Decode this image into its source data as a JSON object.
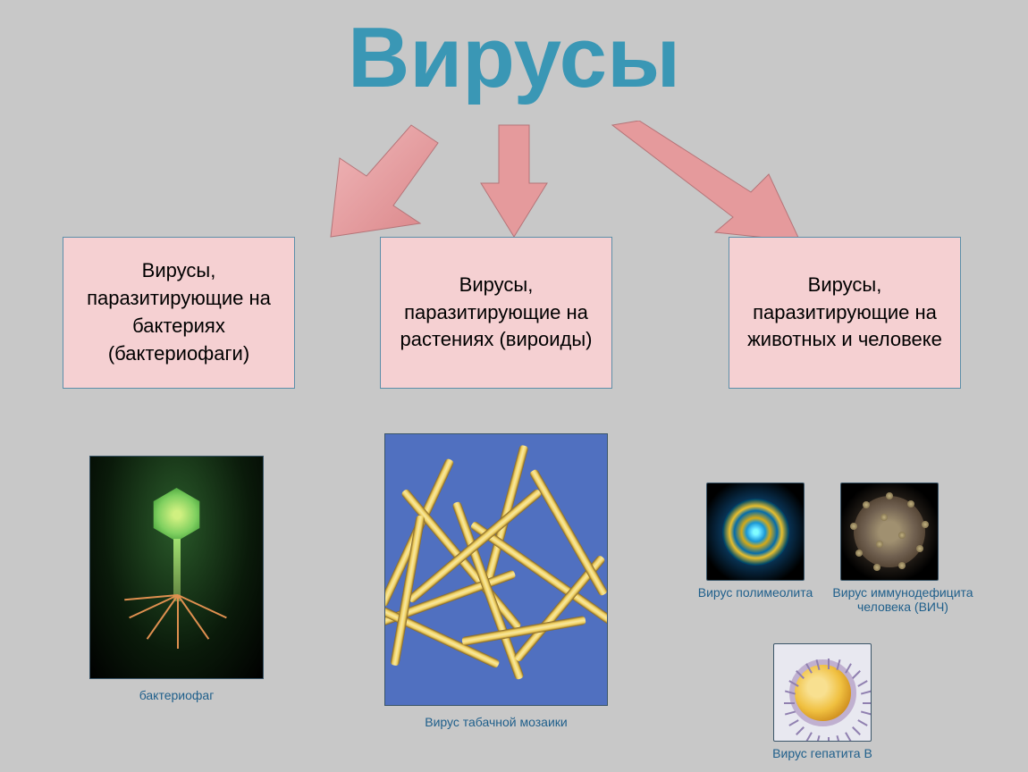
{
  "title": "Вирусы",
  "title_color": "#3a97b5",
  "title_fontsize": 96,
  "background_color": "#c8c8c8",
  "categories": [
    {
      "text": "Вирусы, паразитирующие на бактериях (бактериофаги)",
      "box_color": "#f5d0d2",
      "border_color": "#5c8fa9"
    },
    {
      "text": "Вирусы, паразитирующие на  растениях (вироиды)",
      "box_color": "#f5d0d2",
      "border_color": "#5c8fa9"
    },
    {
      "text": "Вирусы, паразитирующие на животных и человеке",
      "box_color": "#f5d0d2",
      "border_color": "#5c8fa9"
    }
  ],
  "arrows": {
    "fill_color": "#e59a9c",
    "stroke_color": "#b57478"
  },
  "images": {
    "bacteriophage": {
      "caption": "бактериофаг",
      "colors": {
        "head": "#80d060",
        "bg": "#0a1a0a",
        "legs": "#e09050"
      }
    },
    "tmv": {
      "caption": "Вирус табачной мозаики",
      "colors": {
        "rods": "#f0d060",
        "bg": "#5070c0"
      }
    },
    "polio": {
      "caption": "Вирус полимеолита",
      "colors": {
        "core": "#3090c0",
        "bg": "#000000"
      }
    },
    "hiv": {
      "caption": "Вирус иммунодефицита человека (ВИЧ)",
      "colors": {
        "core": "#706050",
        "bg": "#000000"
      }
    },
    "hepb": {
      "caption": "Вирус гепатита В",
      "colors": {
        "core": "#f0c040",
        "bg": "#e8e8f0"
      }
    }
  },
  "caption_color": "#1f5f8b",
  "caption_fontsize": 14
}
